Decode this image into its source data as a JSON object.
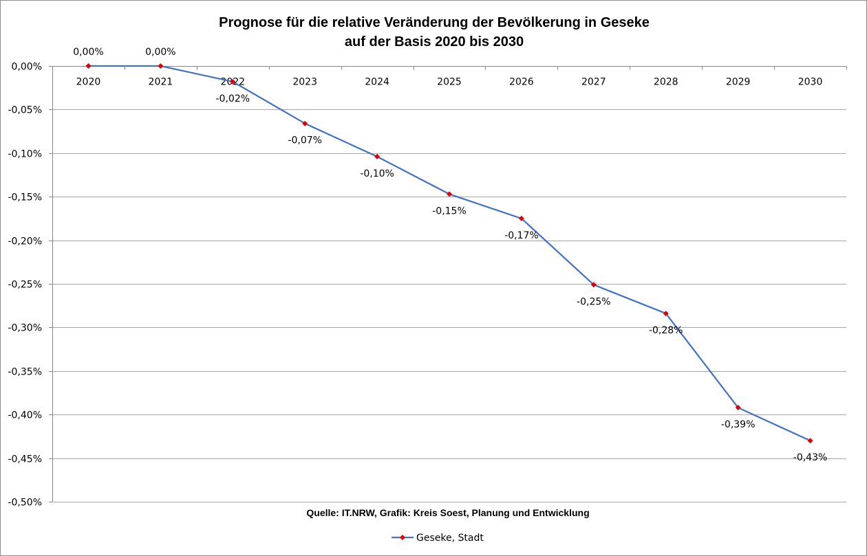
{
  "chart_data": {
    "type": "line",
    "title_line1": "Prognose für die relative Veränderung der Bevölkerung in Geseke",
    "title_line2": "auf der Basis 2020 bis 2030",
    "source_note": "Quelle: IT.NRW, Grafik: Kreis Soest, Planung und Entwicklung",
    "categories": [
      "2020",
      "2021",
      "2022",
      "2023",
      "2024",
      "2025",
      "2026",
      "2027",
      "2028",
      "2029",
      "2030"
    ],
    "series": [
      {
        "name": "Geseke, Stadt",
        "values": [
          0.0,
          0.0,
          -0.018,
          -0.066,
          -0.104,
          -0.147,
          -0.175,
          -0.251,
          -0.284,
          -0.392,
          -0.43
        ],
        "labels": [
          "0,00%",
          "0,00%",
          "-0,02%",
          "-0,07%",
          "-0,10%",
          "-0,15%",
          "-0,17%",
          "-0,25%",
          "-0,28%",
          "-0,39%",
          "-0,43%"
        ],
        "line_color": "#4472c4",
        "marker_color": "#e00000"
      }
    ],
    "ylim": [
      -0.5,
      0.0
    ],
    "y_ticks": [
      0.0,
      -0.05,
      -0.1,
      -0.15,
      -0.2,
      -0.25,
      -0.3,
      -0.35,
      -0.4,
      -0.45,
      -0.5
    ],
    "y_tick_labels": [
      "0,00%",
      "-0,05%",
      "-0,10%",
      "-0,15%",
      "-0,20%",
      "-0,25%",
      "-0,30%",
      "-0,35%",
      "-0,40%",
      "-0,45%",
      "-0,50%"
    ],
    "grid": true,
    "legend_position": "bottom",
    "grid_color": "#a6a6a6",
    "axis_color": "#868686"
  }
}
